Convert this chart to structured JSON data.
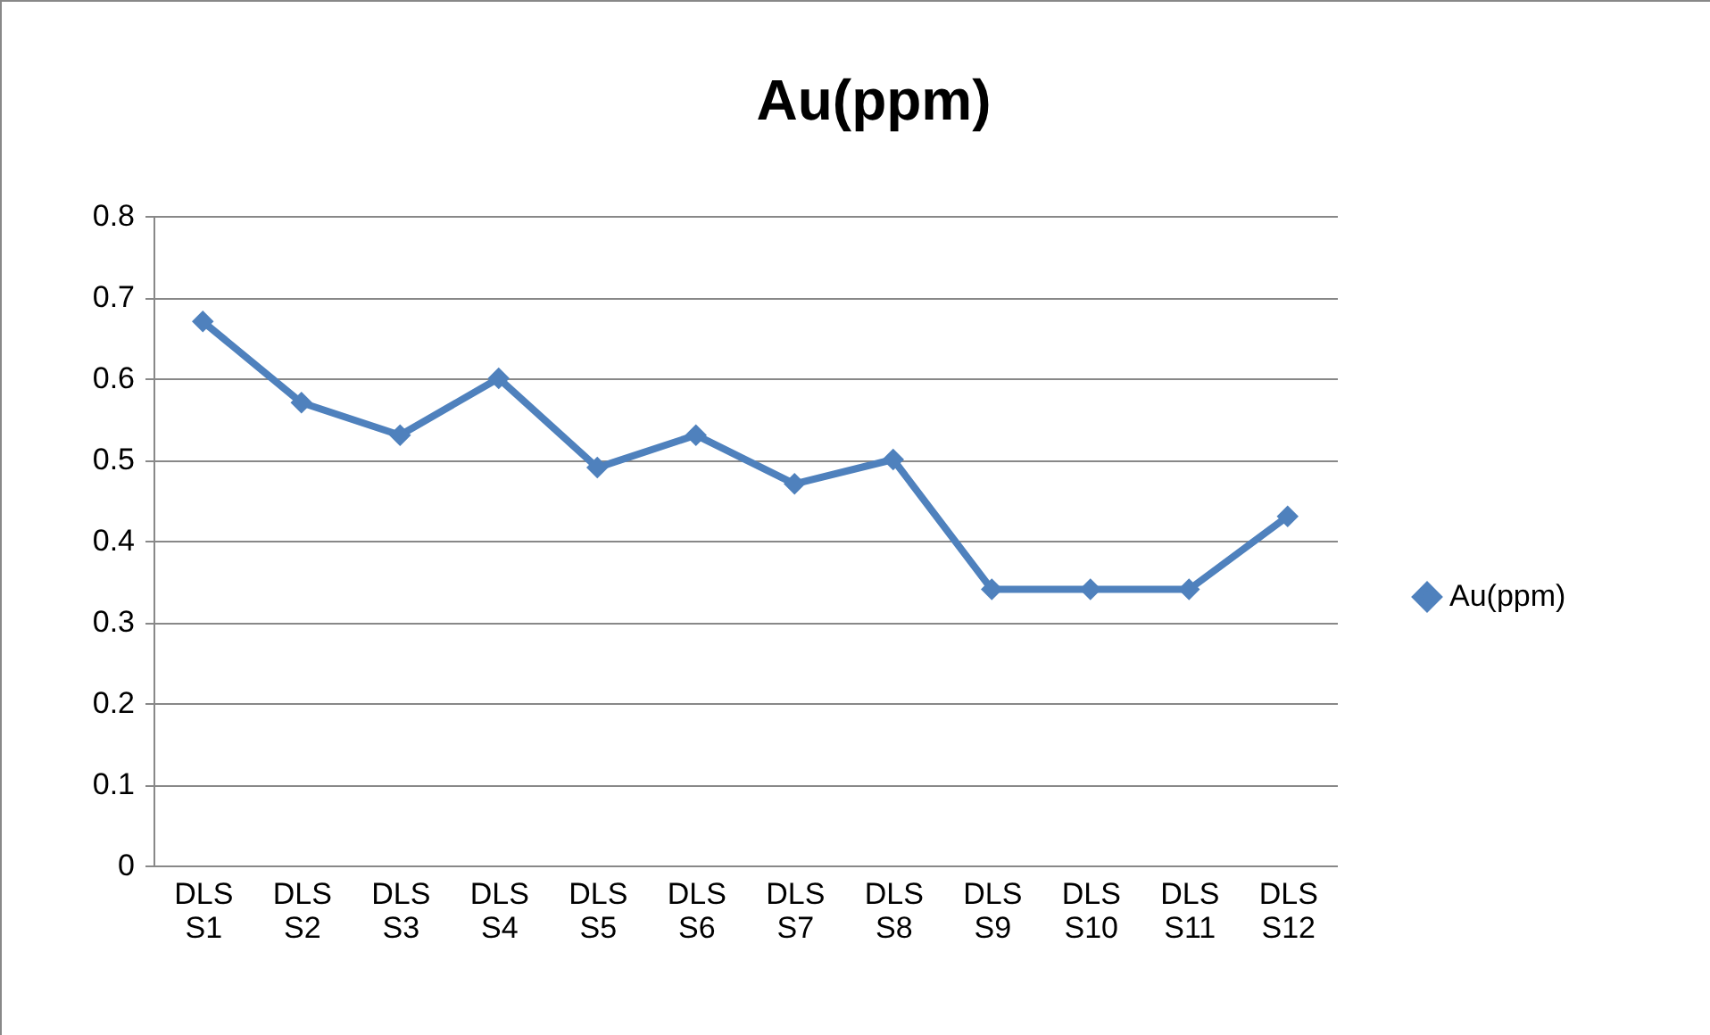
{
  "chart_data": {
    "type": "line",
    "title": "Au(ppm)",
    "categories": [
      "DLS S1",
      "DLS S2",
      "DLS S3",
      "DLS S4",
      "DLS S5",
      "DLS S6",
      "DLS S7",
      "DLS S8",
      "DLS S9",
      "DLS S10",
      "DLS S11",
      "DLS S12"
    ],
    "series": [
      {
        "name": "Au(ppm)",
        "color": "#4f81bd",
        "values": [
          0.67,
          0.57,
          0.53,
          0.6,
          0.49,
          0.53,
          0.47,
          0.5,
          0.34,
          0.34,
          0.34,
          0.43
        ]
      }
    ],
    "ylim": [
      0,
      0.8
    ],
    "yticks": [
      0,
      0.1,
      0.2,
      0.3,
      0.4,
      0.5,
      0.6,
      0.7,
      0.8
    ],
    "grid": "y",
    "legend": "right",
    "marker": "diamond",
    "line_style": "solid"
  }
}
